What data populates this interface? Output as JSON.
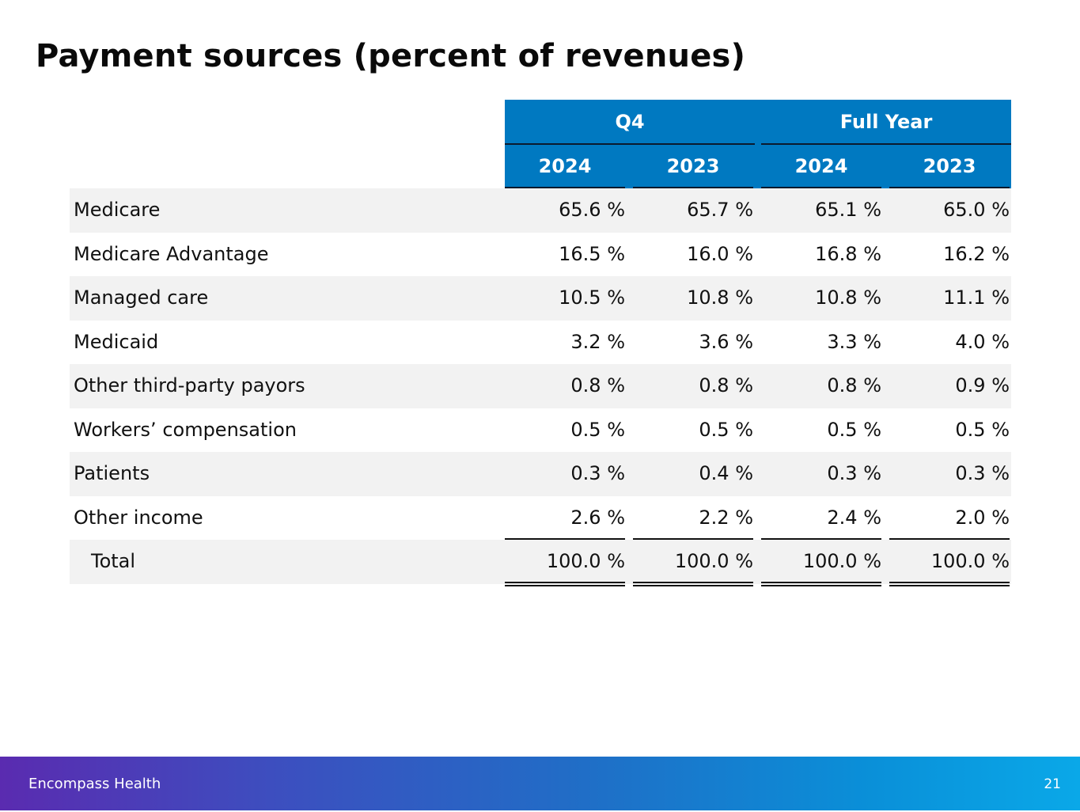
{
  "slide": {
    "title": "Payment sources (percent of revenues)",
    "page_number": "21"
  },
  "footer": {
    "brand": "Encompass Health"
  },
  "colors": {
    "header_fill": "#0079c1",
    "row_shade": "#f2f2f2"
  },
  "table": {
    "group_headers": [
      "Q4",
      "Full Year"
    ],
    "year_headers": [
      "2024",
      "2023",
      "2024",
      "2023"
    ],
    "rows": [
      {
        "label": "Medicare",
        "values": [
          "65.6 %",
          "65.7 %",
          "65.1 %",
          "65.0 %"
        ]
      },
      {
        "label": "Medicare Advantage",
        "values": [
          "16.5 %",
          "16.0 %",
          "16.8 %",
          "16.2 %"
        ]
      },
      {
        "label": "Managed care",
        "values": [
          "10.5 %",
          "10.8 %",
          "10.8 %",
          "11.1 %"
        ]
      },
      {
        "label": "Medicaid",
        "values": [
          "3.2 %",
          "3.6 %",
          "3.3 %",
          "4.0 %"
        ]
      },
      {
        "label": "Other third-party payors",
        "values": [
          "0.8 %",
          "0.8 %",
          "0.8 %",
          "0.9 %"
        ]
      },
      {
        "label": "Workers’ compensation",
        "values": [
          "0.5 %",
          "0.5 %",
          "0.5 %",
          "0.5 %"
        ]
      },
      {
        "label": "Patients",
        "values": [
          "0.3 %",
          "0.4 %",
          "0.3 %",
          "0.3 %"
        ]
      },
      {
        "label": "Other income",
        "values": [
          "2.6 %",
          "2.2 %",
          "2.4 %",
          "2.0 %"
        ]
      },
      {
        "label": "Total",
        "values": [
          "100.0 %",
          "100.0 %",
          "100.0 %",
          "100.0 %"
        ]
      }
    ]
  }
}
